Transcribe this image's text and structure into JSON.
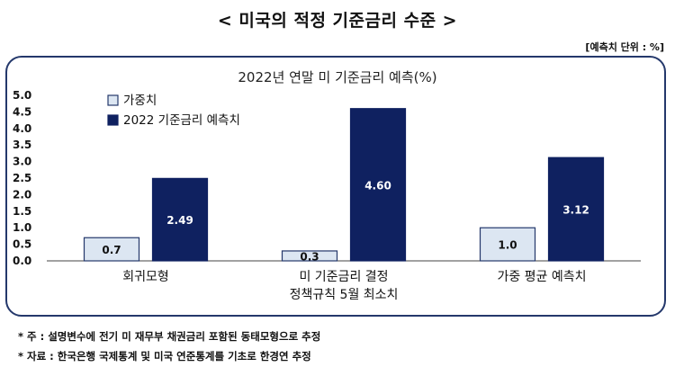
{
  "page": {
    "title": "< 미국의 적정 기준금리 수준 >",
    "unit_note": "[예측치 단위 : %]",
    "footnotes": [
      "* 주 : 설명변수에 전기 미 재무부 채권금리 포함된 동태모형으로 추정",
      "* 자료 : 한국은행 국제통계 및 미국 연준통계를 기초로 한경연 추정"
    ]
  },
  "chart_data": {
    "type": "bar",
    "title": "2022년 연말 미 기준금리 예측(%)",
    "categories": [
      [
        "회귀모형"
      ],
      [
        "미 기준금리 결정",
        "정책규칙 5월 최소치"
      ],
      [
        "가중 평균 예측치"
      ]
    ],
    "series": [
      {
        "name": "가중치",
        "values": [
          0.7,
          0.3,
          1.0
        ],
        "labels": [
          "0.7",
          "0.3",
          "1.0"
        ],
        "color": "#dce6f2",
        "stroke": "#24386b"
      },
      {
        "name": "2022 기준금리 예측치",
        "values": [
          2.49,
          4.6,
          3.12
        ],
        "labels": [
          "2.49",
          "4.60",
          "3.12"
        ],
        "color": "#0f2160",
        "stroke": "#0f2160"
      }
    ],
    "ylim": [
      0,
      5.0
    ],
    "yticks": [
      "0.0",
      "0.5",
      "1.0",
      "1.5",
      "2.0",
      "2.5",
      "3.0",
      "3.5",
      "4.0",
      "4.5",
      "5.0"
    ],
    "legend_position": "top-left",
    "grid": false
  }
}
